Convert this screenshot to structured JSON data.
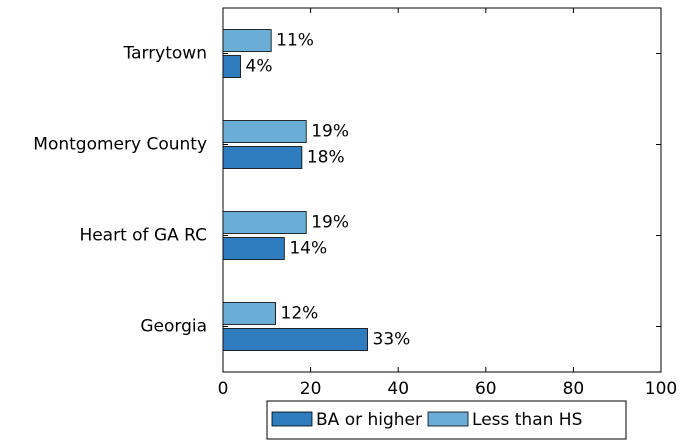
{
  "chart_data": {
    "type": "bar",
    "orientation": "horizontal",
    "categories": [
      "Tarrytown",
      "Montgomery County",
      "Heart of GA RC",
      "Georgia"
    ],
    "series": [
      {
        "name": "BA or higher",
        "color": "#2f7dbf",
        "values": [
          4,
          18,
          14,
          33
        ],
        "value_labels": [
          "4%",
          "18%",
          "14%",
          "33%"
        ]
      },
      {
        "name": "Less than HS",
        "color": "#6aaed8",
        "values": [
          11,
          19,
          19,
          12
        ],
        "value_labels": [
          "11%",
          "19%",
          "19%",
          "12%"
        ]
      }
    ],
    "xlim": [
      0,
      100
    ],
    "xticks": [
      0,
      20,
      40,
      60,
      80,
      100
    ],
    "legend": "bottom"
  }
}
